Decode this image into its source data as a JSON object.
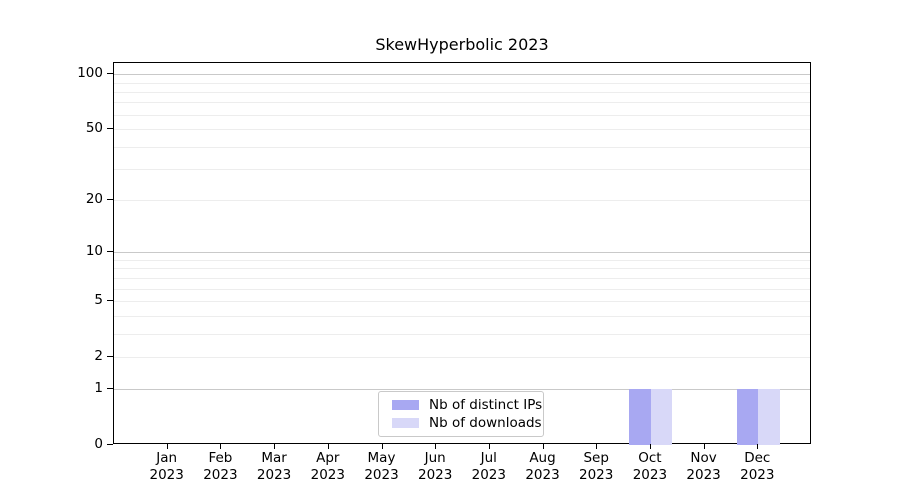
{
  "chart_data": {
    "type": "bar",
    "title": "SkewHyperbolic 2023",
    "categories": [
      {
        "month": "Jan",
        "year": "2023"
      },
      {
        "month": "Feb",
        "year": "2023"
      },
      {
        "month": "Mar",
        "year": "2023"
      },
      {
        "month": "Apr",
        "year": "2023"
      },
      {
        "month": "May",
        "year": "2023"
      },
      {
        "month": "Jun",
        "year": "2023"
      },
      {
        "month": "Jul",
        "year": "2023"
      },
      {
        "month": "Aug",
        "year": "2023"
      },
      {
        "month": "Sep",
        "year": "2023"
      },
      {
        "month": "Oct",
        "year": "2023"
      },
      {
        "month": "Nov",
        "year": "2023"
      },
      {
        "month": "Dec",
        "year": "2023"
      }
    ],
    "series": [
      {
        "name": "Nb of distinct IPs",
        "color": "#a8a8f2",
        "values": [
          0,
          0,
          0,
          0,
          0,
          0,
          0,
          0,
          0,
          1,
          0,
          1
        ]
      },
      {
        "name": "Nb of downloads",
        "color": "#d8d8f8",
        "values": [
          0,
          0,
          0,
          0,
          0,
          0,
          0,
          0,
          0,
          1,
          0,
          1
        ]
      }
    ],
    "xlabel": "",
    "ylabel": "",
    "yscale": "log1p",
    "ylim": [
      0,
      115
    ],
    "yticks": [
      0,
      1,
      2,
      5,
      10,
      20,
      50,
      100
    ],
    "minor_gridlines": [
      2,
      3,
      4,
      5,
      6,
      7,
      8,
      9,
      20,
      30,
      40,
      50,
      60,
      70,
      80,
      90
    ],
    "major_gridlines": [
      1,
      10,
      100
    ],
    "grid": "horizontal only",
    "legend_position": "lower center inside plot"
  }
}
